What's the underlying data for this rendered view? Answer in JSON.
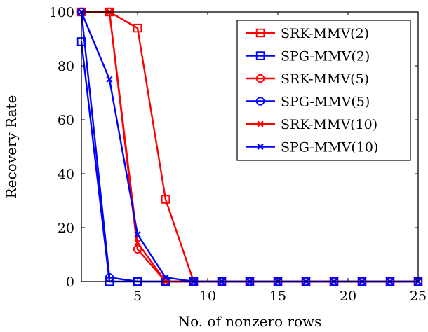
{
  "chart_data": {
    "type": "line",
    "title": "",
    "xlabel": "No. of nonzero rows",
    "ylabel": "Recovery Rate",
    "xlim": [
      1,
      25
    ],
    "ylim": [
      0,
      100
    ],
    "xticks": [
      5,
      10,
      15,
      20,
      25
    ],
    "yticks": [
      0,
      20,
      40,
      60,
      80,
      100
    ],
    "grid": false,
    "legend_position": "top-right",
    "x": [
      1,
      3,
      5,
      7,
      9,
      11,
      13,
      15,
      17,
      19,
      21,
      23,
      25
    ],
    "series": [
      {
        "name": "SRK-MMV(2)",
        "color": "#ff0000",
        "marker": "square",
        "values": [
          100,
          100,
          94,
          30.5,
          0,
          0,
          0,
          0,
          0,
          0,
          0,
          0,
          0
        ]
      },
      {
        "name": "SPG-MMV(2)",
        "color": "#0000ff",
        "marker": "square",
        "values": [
          89,
          0,
          0,
          0,
          0,
          0,
          0,
          0,
          0,
          0,
          0,
          0,
          0
        ]
      },
      {
        "name": "SRK-MMV(5)",
        "color": "#ff0000",
        "marker": "circle",
        "values": [
          100,
          100,
          12,
          0,
          0,
          0,
          0,
          0,
          0,
          0,
          0,
          0,
          0
        ]
      },
      {
        "name": "SPG-MMV(5)",
        "color": "#0000ff",
        "marker": "circle",
        "values": [
          100,
          1.5,
          0,
          0,
          0,
          0,
          0,
          0,
          0,
          0,
          0,
          0,
          0
        ]
      },
      {
        "name": "SRK-MMV(10)",
        "color": "#ff0000",
        "marker": "x",
        "values": [
          100,
          100,
          14.5,
          0,
          0,
          0,
          0,
          0,
          0,
          0,
          0,
          0,
          0
        ]
      },
      {
        "name": "SPG-MMV(10)",
        "color": "#0000ff",
        "marker": "x",
        "values": [
          100,
          75,
          17.5,
          1.5,
          0,
          0,
          0,
          0,
          0,
          0,
          0,
          0,
          0
        ]
      }
    ]
  }
}
